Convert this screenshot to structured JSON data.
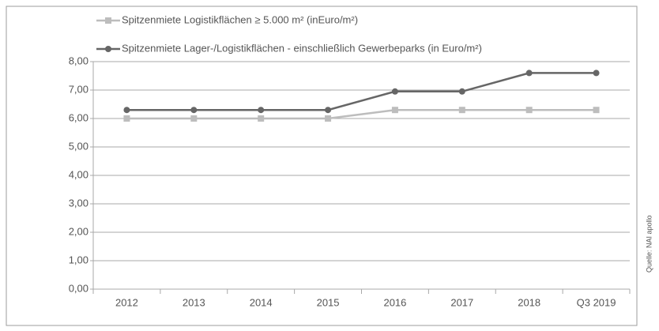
{
  "chart_data": {
    "type": "line",
    "categories": [
      "2012",
      "2013",
      "2014",
      "2015",
      "2016",
      "2017",
      "2018",
      "Q3 2019"
    ],
    "series": [
      {
        "name": "Spitzenmiete Logistikflächen ≥ 5.000 m² (inEuro/m²)",
        "color": "#bdbdbd",
        "marker": "square",
        "values": [
          6.0,
          6.0,
          6.0,
          6.0,
          6.3,
          6.3,
          6.3,
          6.3
        ]
      },
      {
        "name": "Spitzenmiete Lager-/Logistikflächen - einschließlich Gewerbeparks (in Euro/m²)",
        "color": "#666666",
        "marker": "circle",
        "values": [
          6.3,
          6.3,
          6.3,
          6.3,
          6.95,
          6.95,
          7.6,
          7.6
        ]
      }
    ],
    "ylim": [
      0,
      8
    ],
    "yticks": [
      {
        "value": 0,
        "label": "0,00"
      },
      {
        "value": 1,
        "label": "1,00"
      },
      {
        "value": 2,
        "label": "2,00"
      },
      {
        "value": 3,
        "label": "3,00"
      },
      {
        "value": 4,
        "label": "4,00"
      },
      {
        "value": 5,
        "label": "5,00"
      },
      {
        "value": 6,
        "label": "6,00"
      },
      {
        "value": 7,
        "label": "7,00"
      },
      {
        "value": 8,
        "label": "8,00"
      }
    ],
    "grid": true,
    "source": "Quelle: NAI apollo"
  }
}
